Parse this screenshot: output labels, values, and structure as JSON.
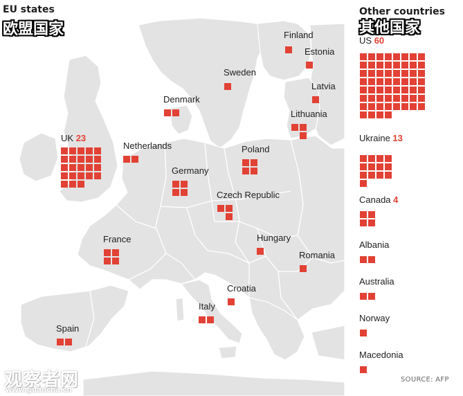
{
  "eu": {
    "title_en": "EU states",
    "title_zh": "欧盟国家",
    "countries": [
      {
        "name": "Finland",
        "count": null,
        "squares": 1
      },
      {
        "name": "Estonia",
        "count": null,
        "squares": 1
      },
      {
        "name": "Sweden",
        "count": null,
        "squares": 1
      },
      {
        "name": "Latvia",
        "count": null,
        "squares": 1
      },
      {
        "name": "Denmark",
        "count": null,
        "squares": 2
      },
      {
        "name": "Lithuania",
        "count": null,
        "squares": 3
      },
      {
        "name": "UK",
        "count": "23",
        "squares": 23
      },
      {
        "name": "Netherlands",
        "count": null,
        "squares": 2
      },
      {
        "name": "Poland",
        "count": null,
        "squares": 4
      },
      {
        "name": "Germany",
        "count": null,
        "squares": 4
      },
      {
        "name": "Czech Republic",
        "count": null,
        "squares": 3
      },
      {
        "name": "France",
        "count": null,
        "squares": 4
      },
      {
        "name": "Hungary",
        "count": null,
        "squares": 1
      },
      {
        "name": "Romania",
        "count": null,
        "squares": 1
      },
      {
        "name": "Croatia",
        "count": null,
        "squares": 1
      },
      {
        "name": "Italy",
        "count": null,
        "squares": 2
      },
      {
        "name": "Spain",
        "count": null,
        "squares": 2
      }
    ]
  },
  "other": {
    "title_en": "Other countries",
    "title_zh": "其他国家",
    "countries": [
      {
        "name": "US",
        "count": "60",
        "squares": 60
      },
      {
        "name": "Ukraine",
        "count": "13",
        "squares": 13
      },
      {
        "name": "Canada",
        "count": "4",
        "squares": 4
      },
      {
        "name": "Albania",
        "count": null,
        "squares": 2
      },
      {
        "name": "Australia",
        "count": null,
        "squares": 2
      },
      {
        "name": "Norway",
        "count": null,
        "squares": 1
      },
      {
        "name": "Macedonia",
        "count": null,
        "squares": 1
      }
    ]
  },
  "source": "SOURCE: AFP",
  "watermark": "观察者网",
  "watermark_url": "www.guancha.cn",
  "colors": {
    "square": "#e24135",
    "land": "#e3e3e3",
    "border": "#ffffff",
    "sea": "#ffffff"
  }
}
